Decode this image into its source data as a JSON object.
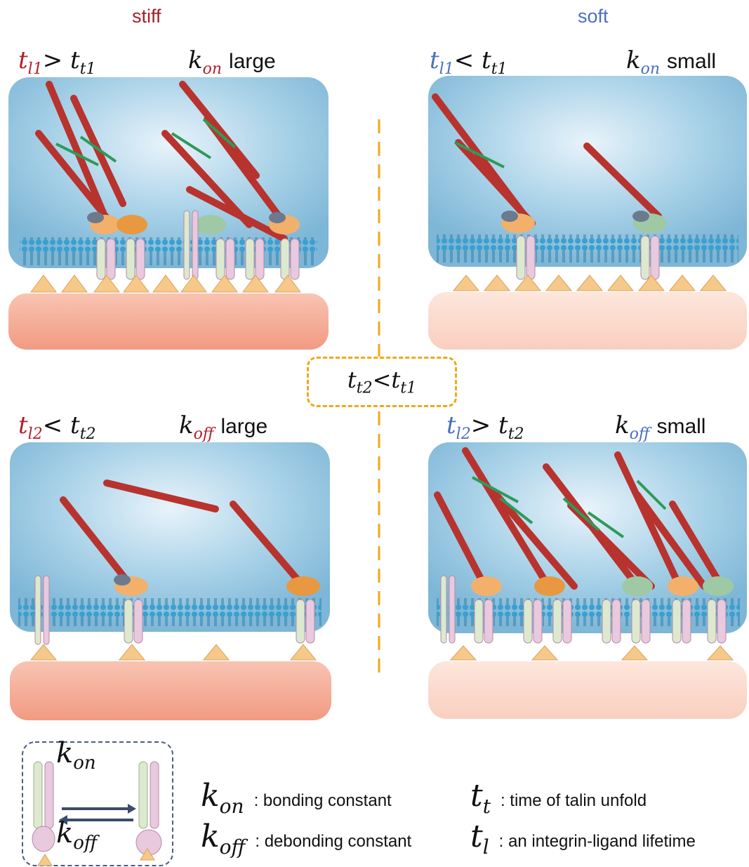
{
  "headers": {
    "left": "stiff",
    "right": "soft"
  },
  "panels": {
    "top_left": {
      "t_sym": "t",
      "t_sub": "l1",
      "rel": ">",
      "t2_sym": "t",
      "t2_sub": "t1",
      "k_sym": "k",
      "k_sub": "on",
      "word": "large"
    },
    "top_right": {
      "t_sym": "t",
      "t_sub": "l1",
      "rel": "<",
      "t2_sym": "t",
      "t2_sub": "t1",
      "k_sym": "k",
      "k_sub": "on",
      "word": "small"
    },
    "bottom_left": {
      "t_sym": "t",
      "t_sub": "l2",
      "rel": "<",
      "t2_sym": "t",
      "t2_sub": "t2",
      "k_sym": "k",
      "k_sub": "off",
      "word": "large"
    },
    "bottom_right": {
      "t_sym": "t",
      "t_sub": "l2",
      "rel": ">",
      "t2_sym": "t",
      "t2_sub": "t2",
      "k_sym": "k",
      "k_sub": "off",
      "word": "small"
    }
  },
  "center": {
    "a_sym": "t",
    "a_sub": "t2",
    "rel": "<",
    "b_sym": "t",
    "b_sub": "t1"
  },
  "legend": {
    "box_kon_sym": "k",
    "box_kon_sub": "on",
    "box_koff_sym": "k",
    "box_koff_sub": "off",
    "kon_sym": "k",
    "kon_sub": "on",
    "kon_def": ": bonding constant",
    "koff_sym": "k",
    "koff_sub": "off",
    "koff_def": ": debonding constant",
    "tt_sym": "t",
    "tt_sub": "t",
    "tt_def": ": time of talin unfold",
    "tl_sym": "t",
    "tl_sub": "l",
    "tl_def": ": an integrin-ligand lifetime"
  },
  "colors": {
    "stiff_text": "#a3202a",
    "soft_text": "#4a6fbf",
    "cell": "#7fb8d8",
    "stiff_substrate": "#f4a890",
    "soft_substrate": "#fbd9cc",
    "divider": "#f0a818",
    "ligand": "#f6c98a",
    "actin": "#b8332e"
  }
}
